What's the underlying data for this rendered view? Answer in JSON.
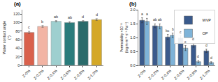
{
  "chart_data": [
    {
      "type": "bar",
      "title": "(a)",
      "ylabel": "Water contact angle (°)",
      "categories": [
        "Z-0%",
        "Z-0.2%",
        "Z-0.4%",
        "Z-0.6%",
        "Z-0.8%",
        "Z-1.0%"
      ],
      "values": [
        77,
        91,
        103,
        100,
        103,
        107
      ],
      "errors": [
        2.5,
        2.0,
        1.5,
        2.0,
        1.5,
        2.0
      ],
      "colors": [
        "#D9614C",
        "#F2B4A4",
        "#9ECFCF",
        "#2A7B7B",
        "#2A6B6B",
        "#D4A827"
      ],
      "annotations": [
        "c",
        "b",
        "ab",
        "ab",
        "d",
        "d"
      ],
      "ylim": [
        0,
        130
      ],
      "yticks": [
        0,
        20,
        40,
        60,
        80,
        100,
        120
      ],
      "grid": false
    },
    {
      "type": "bar",
      "title": "(b)",
      "ylabel": "Permeability ×10⁻¹¹ (log m·m⁻²·s⁻¹·Pa⁻¹)",
      "categories": [
        "Z-0%",
        "Z-0.2%",
        "Z-0.4%",
        "Z-0.6%",
        "Z-0.8%",
        "Z-1.0%"
      ],
      "series": [
        {
          "name": "WVP",
          "color": "#3A5A8C",
          "values": [
            1.62,
            1.42,
            1.02,
            0.98,
            0.72,
            0.52
          ],
          "errors": [
            0.09,
            0.07,
            0.09,
            0.08,
            0.07,
            0.06
          ],
          "annotations": [
            "a",
            "ab",
            "bc",
            "c",
            "d",
            "d"
          ]
        },
        {
          "name": "OP",
          "color": "#7EB3D8",
          "values": [
            1.58,
            1.4,
            1.08,
            0.62,
            0.13,
            0.1
          ],
          "errors": [
            0.11,
            0.09,
            0.08,
            0.09,
            0.04,
            0.03
          ],
          "annotations": [
            "a",
            "ab",
            "b",
            "c",
            "d",
            "d"
          ]
        }
      ],
      "ylim": [
        0.0,
        2.0
      ],
      "yticks": [
        {
          "value": 0.0,
          "label": "0.0"
        },
        0.5,
        {
          "value": 1.0,
          "label": "1.0"
        },
        1.5,
        {
          "value": 2.0,
          "label": "2.0"
        }
      ],
      "legend": "upper right",
      "grid": false
    }
  ]
}
